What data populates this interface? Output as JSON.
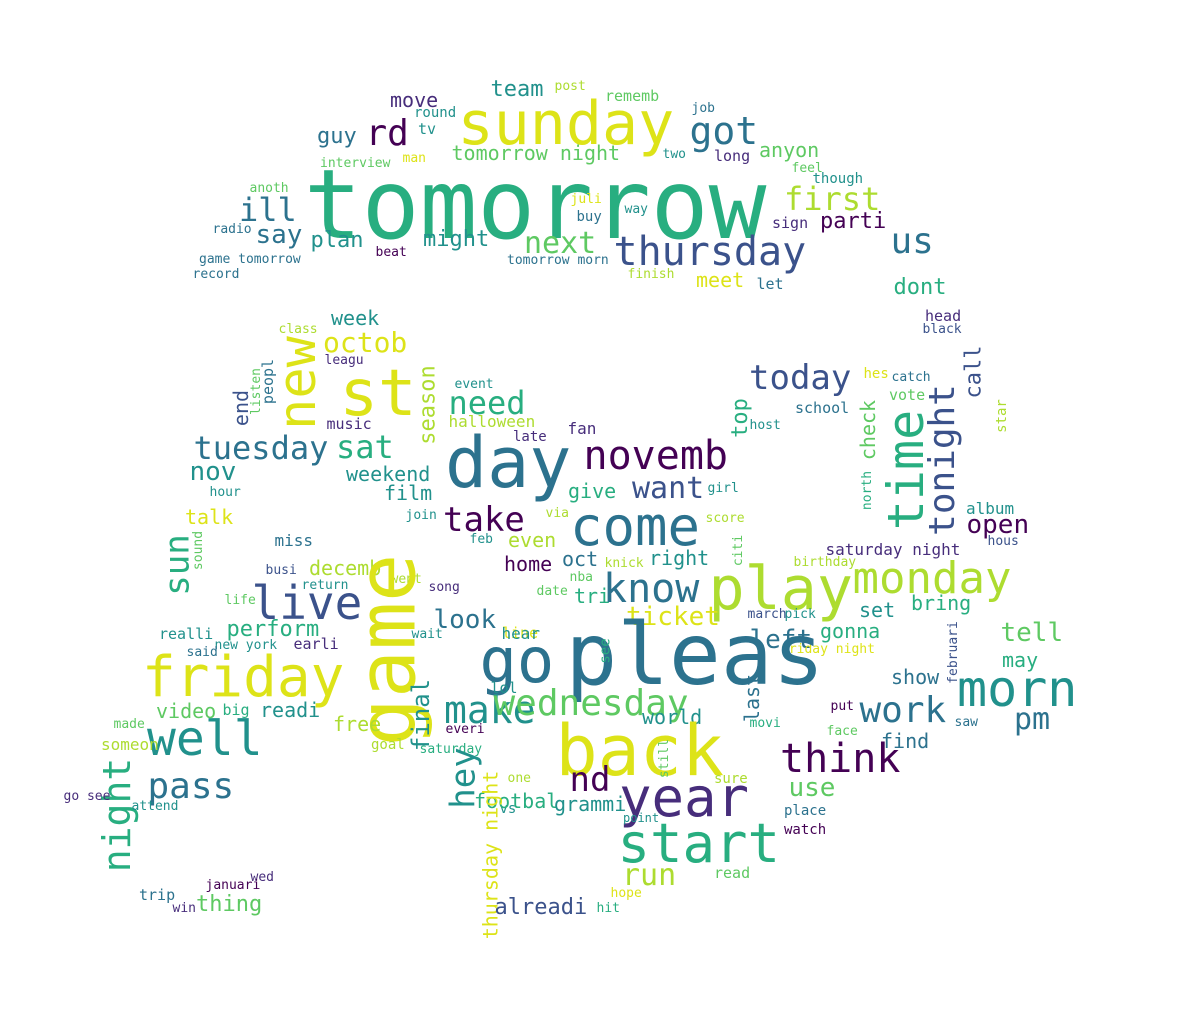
{
  "word_cloud": {
    "palette": {
      "dp": "#440154",
      "pu": "#472d7b",
      "in": "#3b528b",
      "bl": "#2c728e",
      "te": "#21918c",
      "gt": "#28ae80",
      "gr": "#5ec962",
      "li": "#addc30",
      "ye": "#dde318"
    },
    "words": [
      {
        "t": "tomorrow",
        "c": "gt"
      },
      {
        "t": "sunday",
        "c": "ye"
      },
      {
        "t": "rd",
        "c": "dp"
      },
      {
        "t": "got",
        "c": "bl"
      },
      {
        "t": "team",
        "c": "te"
      },
      {
        "t": "post",
        "c": "li"
      },
      {
        "t": "rememb",
        "c": "gr"
      },
      {
        "t": "job",
        "c": "bl"
      },
      {
        "t": "move",
        "c": "pu"
      },
      {
        "t": "round",
        "c": "te"
      },
      {
        "t": "tv",
        "c": "te"
      },
      {
        "t": "guy",
        "c": "bl"
      },
      {
        "t": "tomorrow night",
        "c": "gr"
      },
      {
        "t": "two",
        "c": "te"
      },
      {
        "t": "long",
        "c": "pu"
      },
      {
        "t": "anyon",
        "c": "gr"
      },
      {
        "t": "interview",
        "c": "gr"
      },
      {
        "t": "man",
        "c": "ye"
      },
      {
        "t": "feel",
        "c": "gr"
      },
      {
        "t": "though",
        "c": "te"
      },
      {
        "t": "anoth",
        "c": "gr"
      },
      {
        "t": "first",
        "c": "li"
      },
      {
        "t": "ill",
        "c": "bl"
      },
      {
        "t": "juli",
        "c": "ye"
      },
      {
        "t": "way",
        "c": "te"
      },
      {
        "t": "radio",
        "c": "bl"
      },
      {
        "t": "say",
        "c": "bl"
      },
      {
        "t": "buy",
        "c": "bl"
      },
      {
        "t": "sign",
        "c": "pu"
      },
      {
        "t": "parti",
        "c": "dp"
      },
      {
        "t": "plan",
        "c": "te"
      },
      {
        "t": "might",
        "c": "te"
      },
      {
        "t": "next",
        "c": "gr"
      },
      {
        "t": "thursday",
        "c": "in"
      },
      {
        "t": "us",
        "c": "bl"
      },
      {
        "t": "game tomorrow",
        "c": "bl"
      },
      {
        "t": "record",
        "c": "bl"
      },
      {
        "t": "beat",
        "c": "dp"
      },
      {
        "t": "tomorrow morn",
        "c": "bl"
      },
      {
        "t": "finish",
        "c": "li"
      },
      {
        "t": "meet",
        "c": "ye"
      },
      {
        "t": "let",
        "c": "bl"
      },
      {
        "t": "dont",
        "c": "gt"
      },
      {
        "t": "head",
        "c": "pu"
      },
      {
        "t": "black",
        "c": "in"
      },
      {
        "t": "class",
        "c": "li"
      },
      {
        "t": "week",
        "c": "te"
      },
      {
        "t": "octob",
        "c": "ye"
      },
      {
        "t": "new",
        "c": "ye"
      },
      {
        "t": "st",
        "c": "ye"
      },
      {
        "t": "peopl",
        "c": "bl"
      },
      {
        "t": "leagu",
        "c": "pu"
      },
      {
        "t": "listen",
        "c": "gr"
      },
      {
        "t": "end",
        "c": "in"
      },
      {
        "t": "season",
        "c": "li"
      },
      {
        "t": "event",
        "c": "te"
      },
      {
        "t": "need",
        "c": "gt"
      },
      {
        "t": "halloween",
        "c": "li"
      },
      {
        "t": "music",
        "c": "pu"
      },
      {
        "t": "tuesday",
        "c": "bl"
      },
      {
        "t": "sat",
        "c": "gt"
      },
      {
        "t": "late",
        "c": "pu"
      },
      {
        "t": "fan",
        "c": "pu"
      },
      {
        "t": "day",
        "c": "bl"
      },
      {
        "t": "novemb",
        "c": "dp"
      },
      {
        "t": "today",
        "c": "in"
      },
      {
        "t": "hes",
        "c": "ye"
      },
      {
        "t": "catch",
        "c": "bl"
      },
      {
        "t": "vote",
        "c": "gr"
      },
      {
        "t": "call",
        "c": "in"
      },
      {
        "t": "school",
        "c": "bl"
      },
      {
        "t": "top",
        "c": "gt"
      },
      {
        "t": "host",
        "c": "te"
      },
      {
        "t": "check",
        "c": "gr"
      },
      {
        "t": "time",
        "c": "gt"
      },
      {
        "t": "tonight",
        "c": "in"
      },
      {
        "t": "star",
        "c": "li"
      },
      {
        "t": "nov",
        "c": "te"
      },
      {
        "t": "weekend",
        "c": "te"
      },
      {
        "t": "film",
        "c": "te"
      },
      {
        "t": "hour",
        "c": "te"
      },
      {
        "t": "want",
        "c": "in"
      },
      {
        "t": "give",
        "c": "gt"
      },
      {
        "t": "girl",
        "c": "te"
      },
      {
        "t": "north",
        "c": "gt"
      },
      {
        "t": "album",
        "c": "te"
      },
      {
        "t": "talk",
        "c": "ye"
      },
      {
        "t": "join",
        "c": "te"
      },
      {
        "t": "via",
        "c": "li"
      },
      {
        "t": "take",
        "c": "dp"
      },
      {
        "t": "come",
        "c": "bl"
      },
      {
        "t": "score",
        "c": "li"
      },
      {
        "t": "open",
        "c": "dp"
      },
      {
        "t": "hous",
        "c": "in"
      },
      {
        "t": "miss",
        "c": "bl"
      },
      {
        "t": "sun",
        "c": "gt"
      },
      {
        "t": "feb",
        "c": "te"
      },
      {
        "t": "even",
        "c": "li"
      },
      {
        "t": "citi",
        "c": "gr"
      },
      {
        "t": "saturday night",
        "c": "pu"
      },
      {
        "t": "sound",
        "c": "gr"
      },
      {
        "t": "busi",
        "c": "in"
      },
      {
        "t": "decemb",
        "c": "li"
      },
      {
        "t": "home",
        "c": "dp"
      },
      {
        "t": "oct",
        "c": "bl"
      },
      {
        "t": "right",
        "c": "te"
      },
      {
        "t": "knick",
        "c": "li"
      },
      {
        "t": "birthday",
        "c": "li"
      },
      {
        "t": "went",
        "c": "li"
      },
      {
        "t": "song",
        "c": "pu"
      },
      {
        "t": "return",
        "c": "te"
      },
      {
        "t": "date",
        "c": "gr"
      },
      {
        "t": "nba",
        "c": "gr"
      },
      {
        "t": "tri",
        "c": "gt"
      },
      {
        "t": "live",
        "c": "in"
      },
      {
        "t": "know",
        "c": "bl"
      },
      {
        "t": "play",
        "c": "li"
      },
      {
        "t": "monday",
        "c": "li"
      },
      {
        "t": "ticket",
        "c": "ye"
      },
      {
        "t": "life",
        "c": "gr"
      },
      {
        "t": "bring",
        "c": "gt"
      },
      {
        "t": "set",
        "c": "te"
      },
      {
        "t": "perform",
        "c": "gt"
      },
      {
        "t": "look",
        "c": "bl"
      },
      {
        "t": "realli",
        "c": "te"
      },
      {
        "t": "line",
        "c": "ye"
      },
      {
        "t": "new york",
        "c": "te"
      },
      {
        "t": "earli",
        "c": "pu"
      },
      {
        "t": "wait",
        "c": "te"
      },
      {
        "t": "hear",
        "c": "te"
      },
      {
        "t": "march",
        "c": "in"
      },
      {
        "t": "pick",
        "c": "te"
      },
      {
        "t": "gonna",
        "c": "gt"
      },
      {
        "t": "tell",
        "c": "gr"
      },
      {
        "t": "said",
        "c": "bl"
      },
      {
        "t": "left",
        "c": "bl"
      },
      {
        "t": "friday night",
        "c": "ye"
      },
      {
        "t": "februari",
        "c": "in"
      },
      {
        "t": "may",
        "c": "gt"
      },
      {
        "t": "game",
        "c": "ye"
      },
      {
        "t": "go",
        "c": "bl"
      },
      {
        "t": "friday",
        "c": "ye"
      },
      {
        "t": "pleas",
        "c": "bl"
      },
      {
        "t": "see",
        "c": "gt"
      },
      {
        "t": "morn",
        "c": "te"
      },
      {
        "t": "show",
        "c": "bl"
      },
      {
        "t": "make",
        "c": "te"
      },
      {
        "t": "wednesday",
        "c": "gr"
      },
      {
        "t": "final",
        "c": "te"
      },
      {
        "t": "lol",
        "c": "te"
      },
      {
        "t": "last",
        "c": "bl"
      },
      {
        "t": "work",
        "c": "bl"
      },
      {
        "t": "pm",
        "c": "bl"
      },
      {
        "t": "well",
        "c": "te"
      },
      {
        "t": "video",
        "c": "gr"
      },
      {
        "t": "big",
        "c": "gt"
      },
      {
        "t": "readi",
        "c": "te"
      },
      {
        "t": "free",
        "c": "li"
      },
      {
        "t": "world",
        "c": "te"
      },
      {
        "t": "put",
        "c": "dp"
      },
      {
        "t": "saw",
        "c": "bl"
      },
      {
        "t": "made",
        "c": "gr"
      },
      {
        "t": "face",
        "c": "gr"
      },
      {
        "t": "movi",
        "c": "gt"
      },
      {
        "t": "find",
        "c": "bl"
      },
      {
        "t": "someon",
        "c": "li"
      },
      {
        "t": "everi",
        "c": "dp"
      },
      {
        "t": "goal",
        "c": "li"
      },
      {
        "t": "saturday",
        "c": "gt"
      },
      {
        "t": "back",
        "c": "ye"
      },
      {
        "t": "think",
        "c": "dp"
      },
      {
        "t": "night",
        "c": "gt"
      },
      {
        "t": "pass",
        "c": "bl"
      },
      {
        "t": "still",
        "c": "gr"
      },
      {
        "t": "hey",
        "c": "te"
      },
      {
        "t": "sure",
        "c": "li"
      },
      {
        "t": "one",
        "c": "li"
      },
      {
        "t": "nd",
        "c": "dp"
      },
      {
        "t": "year",
        "c": "pu"
      },
      {
        "t": "use",
        "c": "gr"
      },
      {
        "t": "go see",
        "c": "pu"
      },
      {
        "t": "attend",
        "c": "te"
      },
      {
        "t": "vs",
        "c": "te"
      },
      {
        "t": "footbal",
        "c": "gt"
      },
      {
        "t": "grammi",
        "c": "te"
      },
      {
        "t": "place",
        "c": "bl"
      },
      {
        "t": "thursday night",
        "c": "ye"
      },
      {
        "t": "point",
        "c": "te"
      },
      {
        "t": "watch",
        "c": "dp"
      },
      {
        "t": "start",
        "c": "gt"
      },
      {
        "t": "run",
        "c": "li"
      },
      {
        "t": "hope",
        "c": "ye"
      },
      {
        "t": "read",
        "c": "gr"
      },
      {
        "t": "wed",
        "c": "pu"
      },
      {
        "t": "januari",
        "c": "dp"
      },
      {
        "t": "trip",
        "c": "bl"
      },
      {
        "t": "win",
        "c": "pu"
      },
      {
        "t": "thing",
        "c": "gr"
      },
      {
        "t": "alreadi",
        "c": "in"
      },
      {
        "t": "hit",
        "c": "gt"
      }
    ]
  }
}
